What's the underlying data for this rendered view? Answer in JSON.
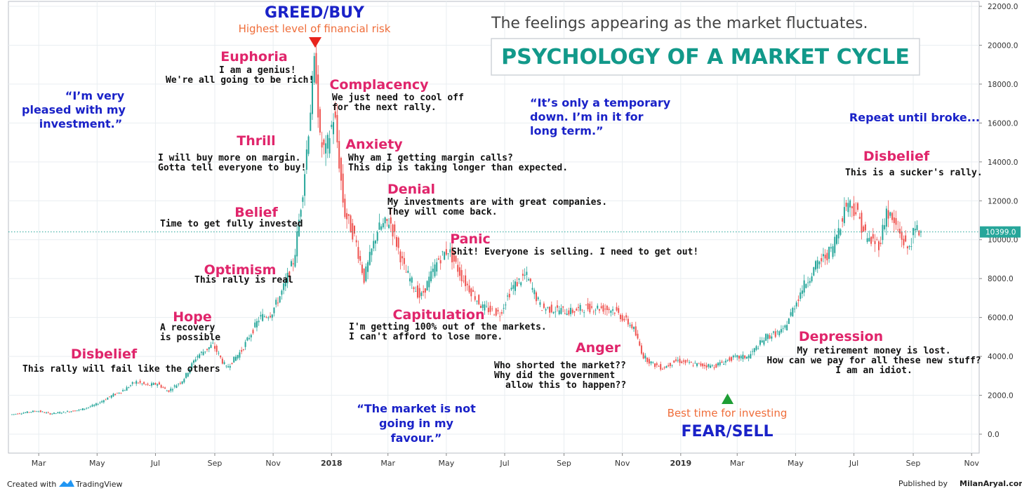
{
  "header": {
    "subtitle": "The feelings appearing as the market fluctuates.",
    "title": "PSYCHOLOGY OF A MARKET CYCLE"
  },
  "peak_marker": {
    "label": "GREED/BUY",
    "sublabel": "Highest level of financial risk",
    "color": "#e8231c"
  },
  "bottom_marker": {
    "label": "FEAR/SELL",
    "sublabel": "Best time for investing",
    "color": "#1e9e35"
  },
  "stages": [
    {
      "name": "Disbelief",
      "caption": [
        "This rally will fail like the others"
      ]
    },
    {
      "name": "Hope",
      "caption": [
        "A recovery",
        "is possible"
      ]
    },
    {
      "name": "Optimism",
      "caption": [
        "This rally is real"
      ]
    },
    {
      "name": "Belief",
      "caption": [
        "Time to get fully invested"
      ]
    },
    {
      "name": "Thrill",
      "caption": [
        "I will buy more on margin.",
        "Gotta tell everyone to buy!"
      ]
    },
    {
      "name": "Euphoria",
      "caption": [
        "I am a genius!",
        "We're all going to be rich!"
      ]
    },
    {
      "name": "Complacency",
      "caption": [
        "We just need to cool off",
        "for the next rally."
      ]
    },
    {
      "name": "Anxiety",
      "caption": [
        "Why am I getting margin calls?",
        "This dip is taking longer than expected."
      ]
    },
    {
      "name": "Denial",
      "caption": [
        "My investments are with great companies.",
        "They will come back."
      ]
    },
    {
      "name": "Panic",
      "caption": [
        "Shit! Everyone is selling. I need to get out!"
      ]
    },
    {
      "name": "Capitulation",
      "caption": [
        "I'm getting 100% out of the markets.",
        "I can't afford to lose more."
      ]
    },
    {
      "name": "Anger",
      "caption": [
        "Who shorted the market??",
        "Why did the government",
        "allow this to happen??"
      ]
    },
    {
      "name": "Depression",
      "caption": [
        "My retirement money is lost.",
        "How can we pay for all these new stuff?",
        "I am an idiot."
      ]
    },
    {
      "name": "Disbelief",
      "caption": [
        "This is a sucker's rally."
      ]
    }
  ],
  "quotes": [
    {
      "lines": [
        "“I’m very",
        "pleased with my",
        "investment.”"
      ]
    },
    {
      "lines": [
        "“It’s only a temporary",
        "down. I’m in it for",
        "long term.”"
      ]
    },
    {
      "lines": [
        "“The market is not",
        "going in my",
        "favour.”"
      ]
    },
    {
      "lines": [
        "Repeat until broke..."
      ]
    }
  ],
  "footer": {
    "created_with": "Created with",
    "brand": "TradingView",
    "published_by": "Published by",
    "publisher": "MilanAryal.com.np"
  },
  "colors": {
    "up": "#26a69a",
    "down": "#ef5350",
    "stage_label": "#e0256b",
    "quote": "#1a22c8",
    "title": "#12998a",
    "price_line": "#26a69a"
  },
  "chart_data": {
    "type": "line",
    "style": "candlestick",
    "x_ticks": [
      "Mar",
      "May",
      "Jul",
      "Sep",
      "Nov",
      "2018",
      "Mar",
      "May",
      "Jul",
      "Sep",
      "Nov",
      "2019",
      "Mar",
      "May",
      "Jul",
      "Sep",
      "Nov"
    ],
    "y_ticks": [
      "22000.0",
      "20000.0",
      "18000.0",
      "16000.0",
      "14000.0",
      "12000.0",
      "10000.0",
      "8000.0",
      "6000.0",
      "4000.0",
      "2000.0",
      "0.0"
    ],
    "ylim": [
      -1000,
      22200
    ],
    "y_axis_side": "right",
    "grid": true,
    "last_price": 10399,
    "last_price_label": "10399.0",
    "series": [
      {
        "x": [
          "2017-02-01",
          "2017-02-15",
          "2017-03-01",
          "2017-03-15",
          "2017-04-01",
          "2017-04-15",
          "2017-05-01",
          "2017-05-15",
          "2017-06-01",
          "2017-06-12",
          "2017-06-25",
          "2017-07-05",
          "2017-07-16",
          "2017-08-01",
          "2017-08-15",
          "2017-09-01",
          "2017-09-15",
          "2017-10-01",
          "2017-10-20",
          "2017-11-01",
          "2017-11-12",
          "2017-11-25",
          "2017-12-05",
          "2017-12-17",
          "2017-12-22",
          "2017-12-28",
          "2018-01-06",
          "2018-01-16",
          "2018-01-28",
          "2018-02-06",
          "2018-02-20",
          "2018-03-05",
          "2018-03-20",
          "2018-04-06",
          "2018-04-25",
          "2018-05-05",
          "2018-05-20",
          "2018-06-10",
          "2018-06-28",
          "2018-07-10",
          "2018-07-25",
          "2018-08-10",
          "2018-08-25",
          "2018-09-10",
          "2018-09-25",
          "2018-10-10",
          "2018-10-25",
          "2018-11-14",
          "2018-11-25",
          "2018-12-05",
          "2018-12-15",
          "2018-12-30",
          "2019-01-15",
          "2019-02-07",
          "2019-02-25",
          "2019-03-15",
          "2019-04-02",
          "2019-04-20",
          "2019-05-10",
          "2019-05-25",
          "2019-06-10",
          "2019-06-26",
          "2019-07-05",
          "2019-07-17",
          "2019-07-30",
          "2019-08-06",
          "2019-08-20",
          "2019-08-28",
          "2019-09-05",
          "2019-09-10"
        ],
        "values": [
          1000,
          1100,
          1200,
          1050,
          1150,
          1250,
          1500,
          1900,
          2300,
          2700,
          2500,
          2600,
          2200,
          2800,
          4000,
          4600,
          3400,
          4300,
          6000,
          6200,
          7300,
          9000,
          13000,
          19500,
          15000,
          14500,
          16500,
          11500,
          10000,
          8000,
          10500,
          11000,
          8500,
          7000,
          9000,
          9500,
          8000,
          6500,
          6200,
          7500,
          8200,
          6500,
          6400,
          6300,
          6500,
          6500,
          6400,
          5500,
          4000,
          3600,
          3400,
          3800,
          3600,
          3500,
          3900,
          4000,
          5000,
          5300,
          7500,
          8700,
          9500,
          12000,
          11500,
          10000,
          9800,
          11500,
          10300,
          9500,
          10500,
          10399
        ]
      }
    ]
  }
}
